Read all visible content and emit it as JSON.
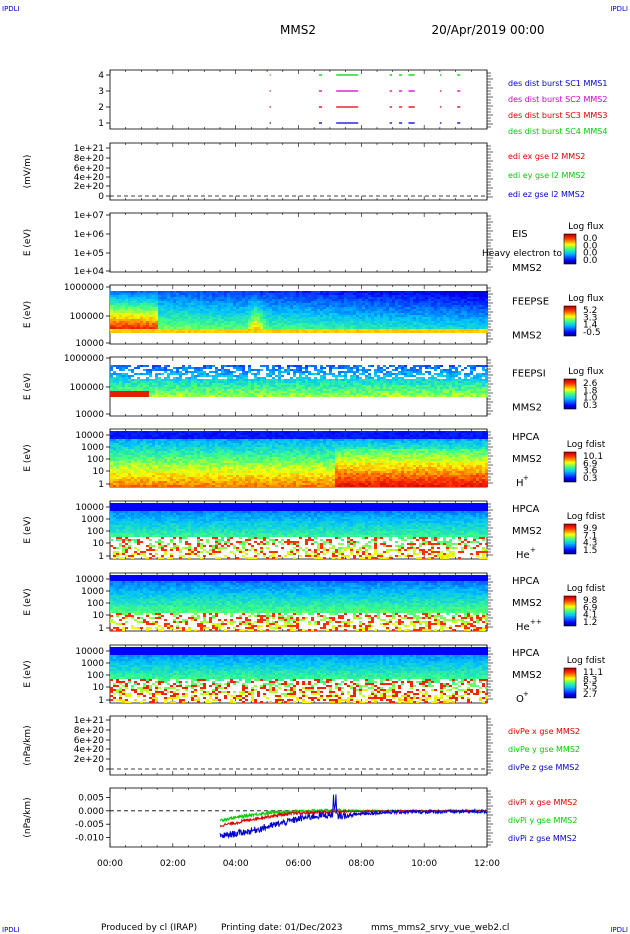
{
  "header": {
    "corner_tl": "IPDLI",
    "corner_tr": "IPDLI",
    "corner_bl": "IPDLI",
    "corner_br": "IPDLI",
    "spacecraft": "MMS2",
    "date": "20/Apr/2019 00:00"
  },
  "footer": {
    "produced": "Produced by cl (IRAP)",
    "printing": "Printing date: 01/Dec/2023",
    "script": "mms_mms2_srvy_vue_web2.cl"
  },
  "colors": {
    "sc1": "#0000cc",
    "sc2": "#cc00cc",
    "sc3": "#dd0000",
    "sc4": "#00cc00",
    "x": "#dd0000",
    "y": "#00cc00",
    "z": "#0000cc"
  },
  "chart_data": [
    {
      "id": "burst",
      "type": "scatter",
      "ylabel": "",
      "yticks": [
        "4",
        "3",
        "2",
        "1"
      ],
      "legend": [
        "des dist burst SC1 MMS1",
        "des dist burst SC2 MMS2",
        "des dist burst SC3 MMS3",
        "des dist burst SC4 MMS4"
      ],
      "segments": [
        [
          5.08,
          5.12
        ],
        [
          6.65,
          6.75
        ],
        [
          7.2,
          7.9
        ],
        [
          8.9,
          8.98
        ],
        [
          9.2,
          9.3
        ],
        [
          9.5,
          9.7
        ],
        [
          10.5,
          10.55
        ],
        [
          11.05,
          11.15
        ]
      ]
    },
    {
      "id": "edi",
      "type": "line",
      "ylabel": "(mV/m)",
      "yticks": [
        "1e+21",
        "8e+20",
        "6e+20",
        "4e+20",
        "2e+20",
        "0"
      ],
      "legend": [
        "edi ex gse l2 MMS2",
        "edi ey gse l2 MMS2",
        "edi ez gse l2 MMS2"
      ]
    },
    {
      "id": "eis",
      "type": "heatmap",
      "ylabel": "E (eV)",
      "yticks": [
        "1e+07",
        "1e+06",
        "1e+05",
        "1e+04"
      ],
      "inst": "EIS",
      "sc": "MMS2",
      "overlay": "Heavy electron to",
      "cbar_title": "Log flux",
      "cbar_ticks": [
        "0.0",
        "0.0",
        "0.0",
        "0.0"
      ]
    },
    {
      "id": "feepse",
      "type": "heatmap",
      "ylabel": "E (eV)",
      "yticks": [
        "1000000",
        "100000",
        "10000"
      ],
      "inst": "FEEPSE",
      "sc": "MMS2",
      "cbar_title": "Log flux",
      "cbar_ticks": [
        "5.2",
        "3.3",
        "1.4",
        "-0.5"
      ]
    },
    {
      "id": "feepsi",
      "type": "heatmap",
      "ylabel": "E (eV)",
      "yticks": [
        "1000000",
        "100000",
        "10000"
      ],
      "inst": "FEEPSI",
      "sc": "MMS2",
      "cbar_title": "Log flux",
      "cbar_ticks": [
        "2.6",
        "1.8",
        "1.0",
        "0.3"
      ]
    },
    {
      "id": "hpca_h",
      "type": "heatmap",
      "ylabel": "E (eV)",
      "yticks": [
        "10000",
        "1000",
        "100",
        "10",
        "1"
      ],
      "inst": "HPCA",
      "sc": "MMS2",
      "ion": "H",
      "charge": "+",
      "cbar_title": "Log fdist",
      "cbar_ticks": [
        "10.1",
        "6.9",
        "3.6",
        "0.3"
      ]
    },
    {
      "id": "hpca_he",
      "type": "heatmap",
      "ylabel": "E (eV)",
      "yticks": [
        "10000",
        "1000",
        "100",
        "10",
        "1"
      ],
      "inst": "HPCA",
      "sc": "MMS2",
      "ion": "He",
      "charge": "+",
      "cbar_title": "Log fdist",
      "cbar_ticks": [
        "9.9",
        "7.1",
        "4.3",
        "1.5"
      ]
    },
    {
      "id": "hpca_hepp",
      "type": "heatmap",
      "ylabel": "E (eV)",
      "yticks": [
        "10000",
        "1000",
        "100",
        "10",
        "1"
      ],
      "inst": "HPCA",
      "sc": "MMS2",
      "ion": "He",
      "charge": "++",
      "cbar_title": "Log fdist",
      "cbar_ticks": [
        "9.8",
        "6.9",
        "4.1",
        "1.2"
      ]
    },
    {
      "id": "hpca_o",
      "type": "heatmap",
      "ylabel": "E (eV)",
      "yticks": [
        "10000",
        "1000",
        "100",
        "10",
        "1"
      ],
      "inst": "HPCA",
      "sc": "MMS2",
      "ion": "O",
      "charge": "+",
      "cbar_title": "Log fdist",
      "cbar_ticks": [
        "11.1",
        "8.3",
        "5.5",
        "2.7"
      ]
    },
    {
      "id": "divpe",
      "type": "line",
      "ylabel": "(nPa/km)",
      "yticks": [
        "1e+21",
        "8e+20",
        "6e+20",
        "4e+20",
        "2e+20",
        "0"
      ],
      "legend": [
        "divPe x gse MMS2",
        "divPe y gse MMS2",
        "divPe z gse MMS2"
      ]
    },
    {
      "id": "divpi",
      "type": "line",
      "ylabel": "(nPa/km)",
      "yticks": [
        "0.005",
        "0.000",
        "-0.005",
        "-0.010"
      ],
      "legend": [
        "divPi x gse MMS2",
        "divPi y gse MMS2",
        "divPi z gse MMS2"
      ],
      "x": [
        3.5,
        4.0,
        4.5,
        5.0,
        5.5,
        6.0,
        6.5,
        7.0,
        7.5,
        8.0,
        9.0,
        10.0,
        11.0,
        12.0
      ],
      "series": [
        {
          "name": "divPi x gse MMS2",
          "values": [
            -0.0055,
            -0.0045,
            -0.0032,
            -0.0022,
            -0.0014,
            -0.0009,
            -0.0006,
            -0.0004,
            -0.0003,
            -0.0002,
            -0.0001,
            0.0,
            0.0,
            0.0
          ]
        },
        {
          "name": "divPi y gse MMS2",
          "values": [
            -0.0035,
            -0.0025,
            -0.0015,
            -0.0008,
            -0.0004,
            -0.0002,
            0.0,
            0.0002,
            0.0001,
            0.0,
            0.0,
            0.0,
            0.0,
            0.0
          ]
        },
        {
          "name": "divPi z gse MMS2",
          "values": [
            -0.0095,
            -0.0085,
            -0.0075,
            -0.006,
            -0.0045,
            -0.003,
            -0.002,
            -0.0015,
            -0.002,
            -0.001,
            -0.0005,
            -0.0004,
            -0.0003,
            -0.0003
          ]
        }
      ]
    }
  ],
  "xaxis": {
    "xlim": [
      0,
      12
    ],
    "ticks": [
      "00:00",
      "02:00",
      "04:00",
      "06:00",
      "08:00",
      "10:00",
      "12:00"
    ]
  }
}
